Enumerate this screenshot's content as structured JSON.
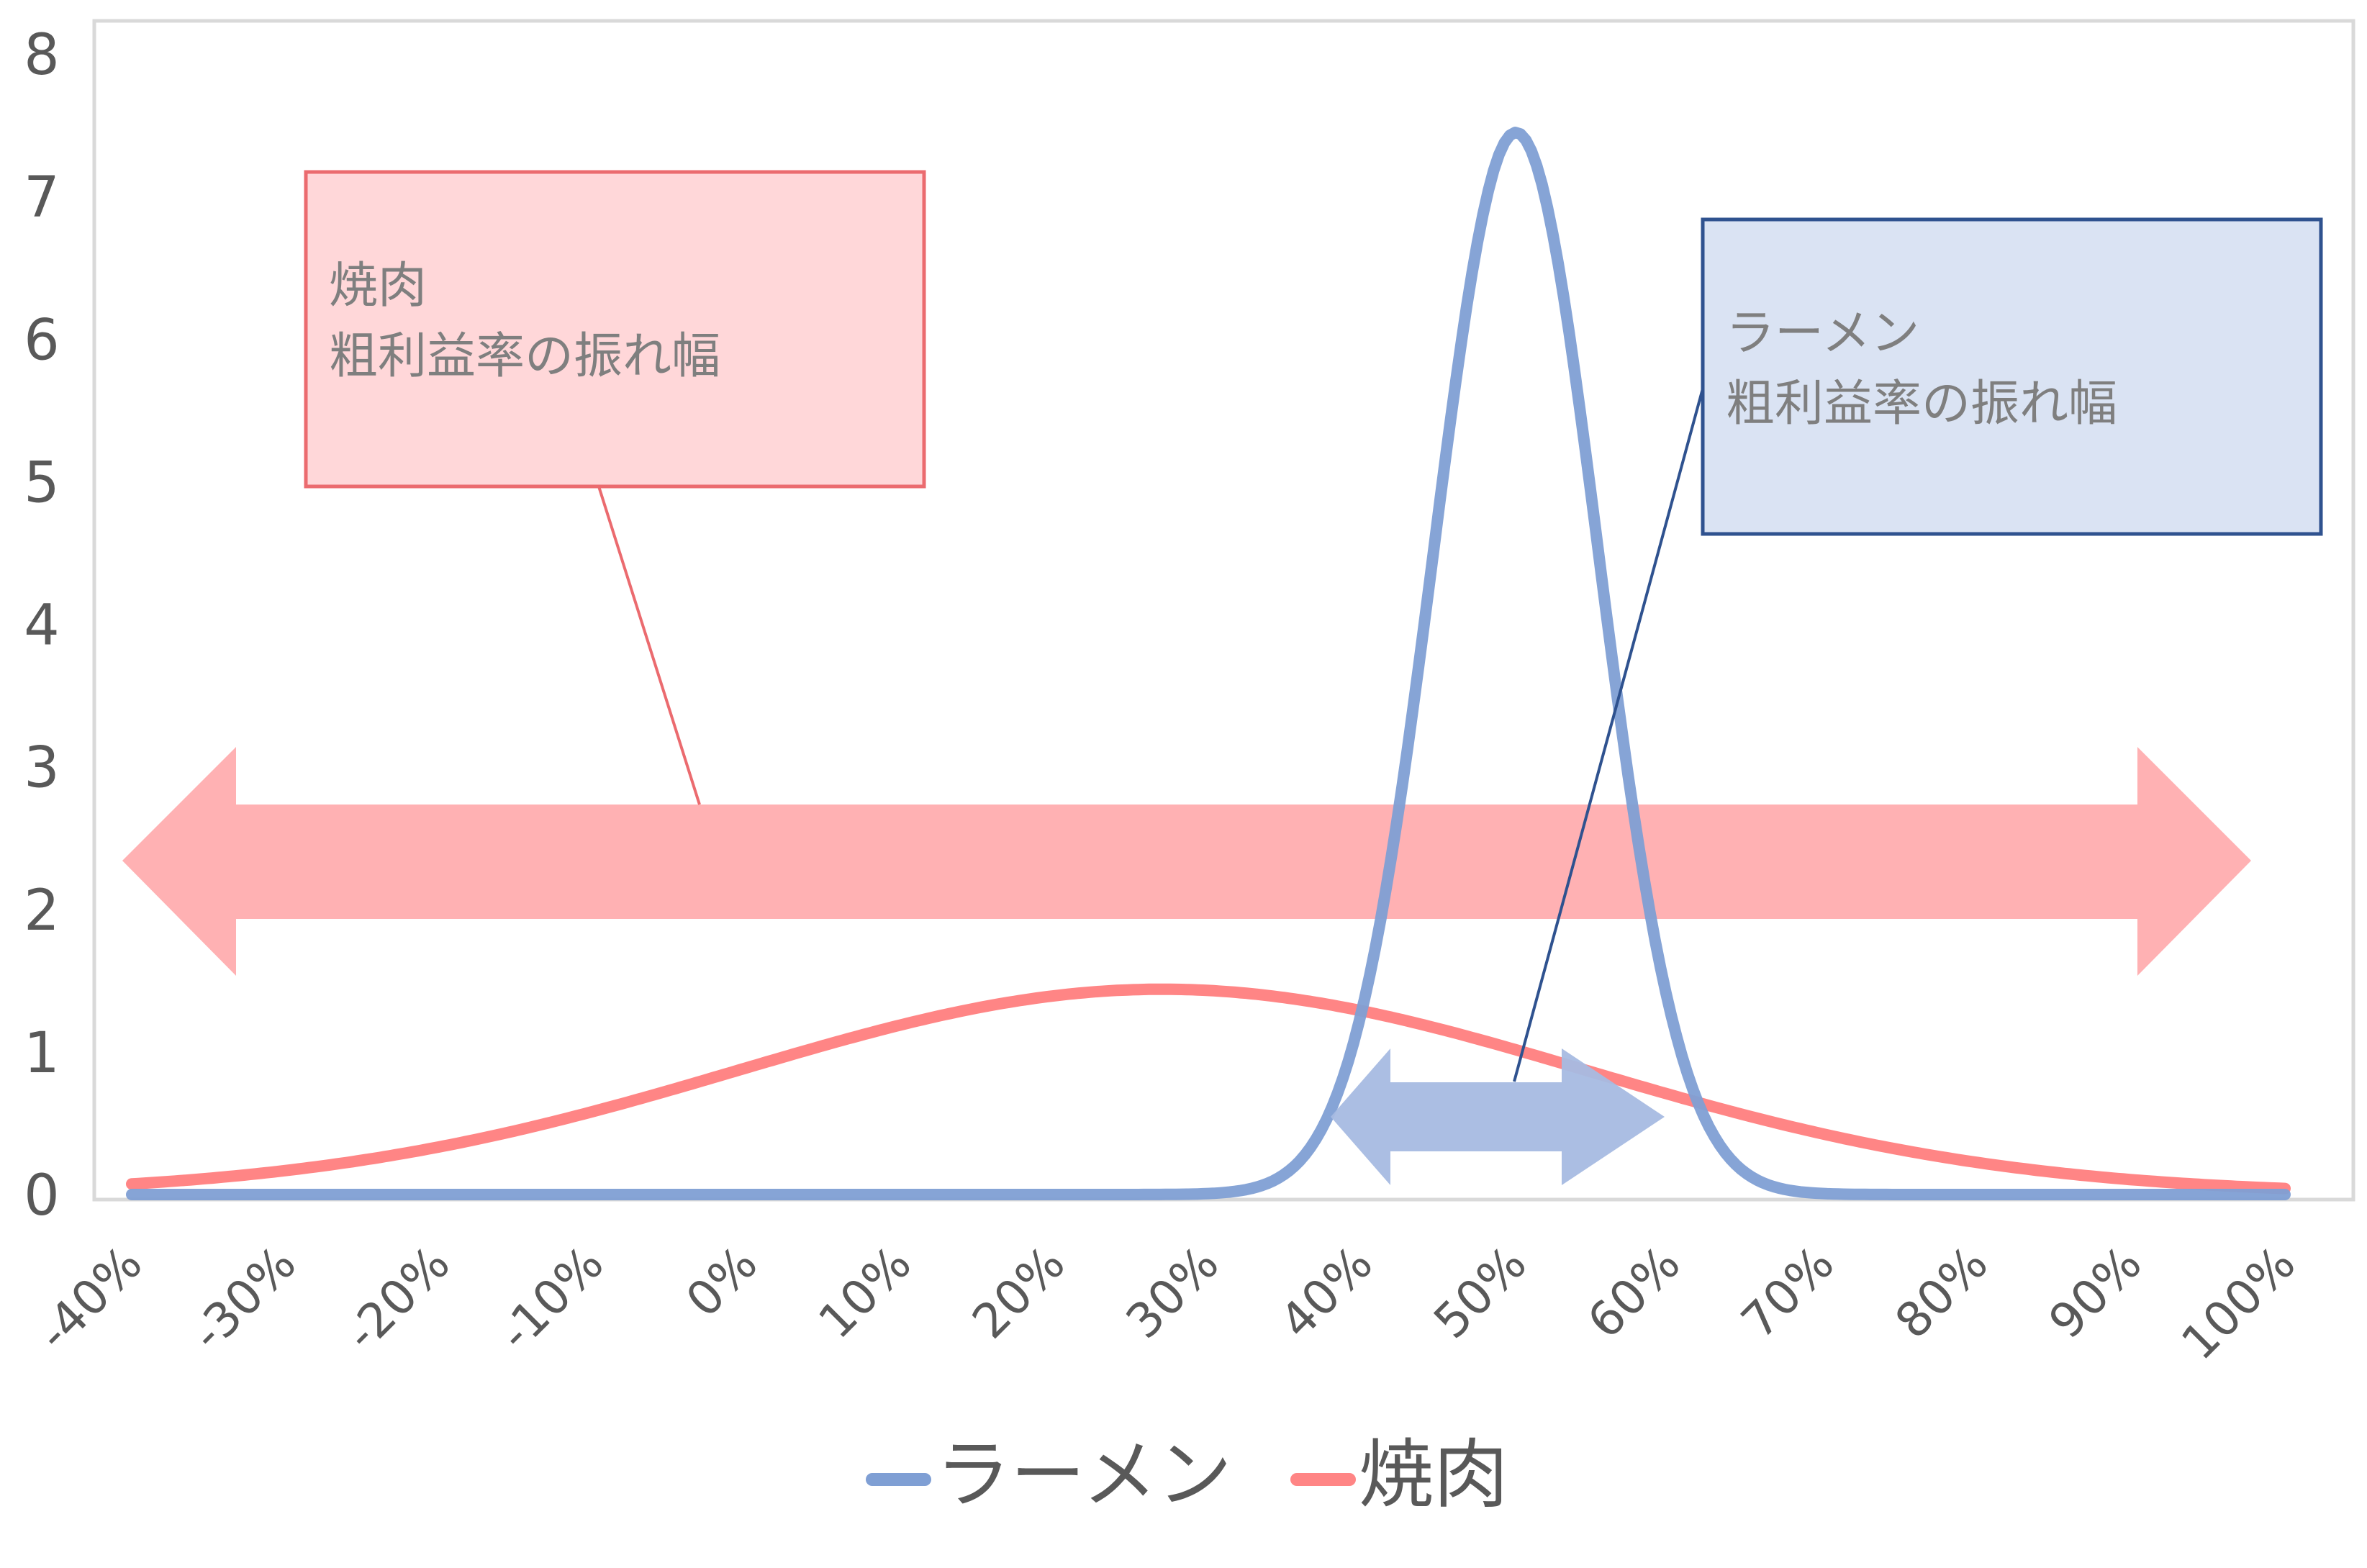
{
  "chart_data": {
    "type": "line",
    "title": "",
    "xlabel": "",
    "ylabel": "",
    "x_tick_labels": [
      "-40%",
      "-30%",
      "-20%",
      "-10%",
      "0%",
      "10%",
      "20%",
      "30%",
      "40%",
      "50%",
      "60%",
      "70%",
      "80%",
      "90%",
      "100%"
    ],
    "y_tick_labels": [
      "0",
      "1",
      "2",
      "3",
      "4",
      "5",
      "6",
      "7",
      "8"
    ],
    "xlim": [
      -0.4,
      1.0
    ],
    "ylim": [
      0,
      8
    ],
    "grid": false,
    "legend_position": "bottom",
    "series": [
      {
        "name": "ラーメン",
        "color": "#7f9fd4",
        "distribution": {
          "kind": "normal",
          "mean": 0.5,
          "sd": 0.0535,
          "peak": 7.45
        },
        "x": [
          -0.4,
          -0.3,
          -0.2,
          -0.1,
          0.0,
          0.1,
          0.2,
          0.3,
          0.35,
          0.4,
          0.42,
          0.44,
          0.46,
          0.48,
          0.5,
          0.52,
          0.54,
          0.56,
          0.58,
          0.6,
          0.65,
          0.7,
          0.8,
          0.9,
          1.0
        ],
        "values": [
          0,
          0,
          0,
          0,
          0,
          0,
          0,
          0.01,
          0.16,
          1.39,
          2.44,
          3.8,
          5.33,
          6.79,
          7.45,
          6.79,
          5.33,
          3.8,
          2.44,
          1.39,
          0.16,
          0.01,
          0,
          0,
          0
        ]
      },
      {
        "name": "焼肉",
        "color": "#ff8585",
        "distribution": {
          "kind": "normal",
          "mean": 0.27,
          "sd": 0.275,
          "peak": 1.44
        },
        "x": [
          -0.4,
          -0.3,
          -0.2,
          -0.1,
          0.0,
          0.1,
          0.2,
          0.27,
          0.3,
          0.4,
          0.5,
          0.6,
          0.7,
          0.8,
          0.9,
          1.0
        ],
        "values": [
          0.07,
          0.17,
          0.34,
          0.58,
          0.88,
          1.18,
          1.39,
          1.44,
          1.43,
          1.3,
          1.02,
          0.7,
          0.42,
          0.22,
          0.1,
          0.04
        ]
      }
    ],
    "annotations": [
      {
        "type": "callout",
        "lines": [
          "焼肉",
          "粗利益率の振れ幅"
        ],
        "fill": "#ffd7d9",
        "border": "#eb6b6f",
        "points_to": "pink double arrow"
      },
      {
        "type": "callout",
        "lines": [
          "ラーメン",
          "粗利益率の振れ幅"
        ],
        "fill": "#dae3f3",
        "border": "#2f528f",
        "points_to": "blue double arrow"
      },
      {
        "type": "double_arrow",
        "color": "#ffb1b3",
        "x_from": -0.4,
        "x_to": 1.0,
        "y": 2.3,
        "label": "焼肉 range"
      },
      {
        "type": "double_arrow",
        "color": "#a6bbe2",
        "x_from": 0.39,
        "x_to": 0.61,
        "y": 0.55,
        "label": "ラーメン range"
      }
    ]
  },
  "legend": {
    "items": [
      {
        "label": "ラーメン",
        "color": "#7f9fd4"
      },
      {
        "label": "焼肉",
        "color": "#ff8585"
      }
    ]
  },
  "callouts": {
    "yakiniku": {
      "line1": "焼肉",
      "line2": "粗利益率の振れ幅"
    },
    "ramen": {
      "line1": "ラーメン",
      "line2": "粗利益率の振れ幅"
    }
  },
  "colors": {
    "axis_border": "#d9d9d9",
    "tick_text": "#595959",
    "callout_text": "#7f7f7f"
  }
}
